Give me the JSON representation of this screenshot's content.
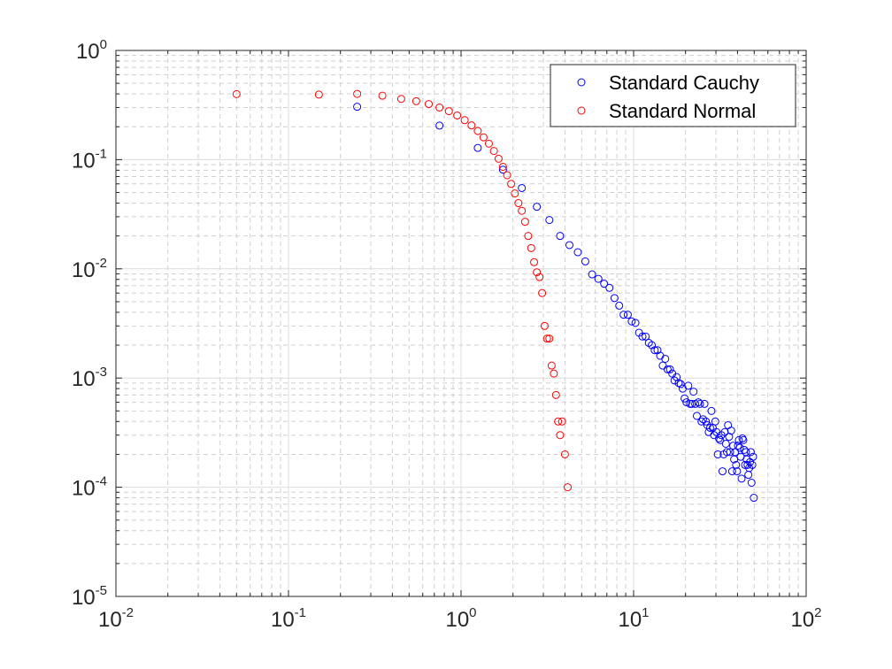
{
  "chart_data": {
    "type": "scatter",
    "xscale": "log",
    "yscale": "log",
    "xlim": [
      0.01,
      100
    ],
    "ylim": [
      1e-05,
      1
    ],
    "grid": true,
    "minor_grid": true,
    "legend_position": "top-right",
    "x_ticks": [
      {
        "value": 0.01,
        "base": "10",
        "exp": "-2"
      },
      {
        "value": 0.1,
        "base": "10",
        "exp": "-1"
      },
      {
        "value": 1,
        "base": "10",
        "exp": "0"
      },
      {
        "value": 10,
        "base": "10",
        "exp": "1"
      },
      {
        "value": 100,
        "base": "10",
        "exp": "2"
      }
    ],
    "y_ticks": [
      {
        "value": 1e-05,
        "base": "10",
        "exp": "-5"
      },
      {
        "value": 0.0001,
        "base": "10",
        "exp": "-4"
      },
      {
        "value": 0.001,
        "base": "10",
        "exp": "-3"
      },
      {
        "value": 0.01,
        "base": "10",
        "exp": "-2"
      },
      {
        "value": 0.1,
        "base": "10",
        "exp": "-1"
      },
      {
        "value": 1,
        "base": "10",
        "exp": "0"
      }
    ],
    "series": [
      {
        "name": "Standard Cauchy",
        "color": "#0000ff",
        "marker": "circle-open",
        "points": [
          [
            0.25,
            0.305
          ],
          [
            0.75,
            0.205
          ],
          [
            1.25,
            0.128
          ],
          [
            1.75,
            0.081
          ],
          [
            2.25,
            0.055
          ],
          [
            2.75,
            0.037
          ],
          [
            3.25,
            0.028
          ],
          [
            3.75,
            0.02
          ],
          [
            4.25,
            0.0165
          ],
          [
            4.75,
            0.0142
          ],
          [
            5.25,
            0.0117
          ],
          [
            5.75,
            0.0089
          ],
          [
            6.25,
            0.0081
          ],
          [
            6.75,
            0.0073
          ],
          [
            7.25,
            0.0067
          ],
          [
            7.75,
            0.0054
          ],
          [
            8.25,
            0.0046
          ],
          [
            8.75,
            0.0038
          ],
          [
            9.25,
            0.0038
          ],
          [
            9.75,
            0.0033
          ],
          [
            10.25,
            0.0032
          ],
          [
            10.75,
            0.0026
          ],
          [
            11.25,
            0.0024
          ],
          [
            11.75,
            0.0024
          ],
          [
            12.25,
            0.0021
          ],
          [
            12.75,
            0.002
          ],
          [
            13.25,
            0.0018
          ],
          [
            13.75,
            0.0018
          ],
          [
            14.25,
            0.0016
          ],
          [
            14.75,
            0.0013
          ],
          [
            15.25,
            0.0015
          ],
          [
            15.75,
            0.0012
          ],
          [
            16.25,
            0.0012
          ],
          [
            16.75,
            0.0011
          ],
          [
            17.25,
            0.00095
          ],
          [
            17.75,
            0.00102
          ],
          [
            18.25,
            0.0009
          ],
          [
            18.75,
            0.00088
          ],
          [
            19.25,
            0.0008
          ],
          [
            19.75,
            0.00065
          ],
          [
            20.25,
            0.0006
          ],
          [
            20.75,
            0.00085
          ],
          [
            21.25,
            0.00058
          ],
          [
            21.75,
            0.00058
          ],
          [
            22.25,
            0.00075
          ],
          [
            22.75,
            0.00058
          ],
          [
            23.25,
            0.00045
          ],
          [
            23.75,
            0.0006
          ],
          [
            24.25,
            0.00058
          ],
          [
            24.75,
            0.0004
          ],
          [
            25.25,
            0.00042
          ],
          [
            25.75,
            0.00058
          ],
          [
            26.25,
            0.0004
          ],
          [
            26.75,
            0.00037
          ],
          [
            27.25,
            0.00032
          ],
          [
            27.75,
            0.00035
          ],
          [
            28.25,
            0.0005
          ],
          [
            28.75,
            0.00035
          ],
          [
            29.25,
            0.0003
          ],
          [
            29.75,
            0.0004
          ],
          [
            30.25,
            0.00032
          ],
          [
            30.75,
            0.0002
          ],
          [
            31.25,
            0.00028
          ],
          [
            31.75,
            0.00027
          ],
          [
            32.25,
            0.0003
          ],
          [
            32.75,
            0.00014
          ],
          [
            33.25,
            0.0002
          ],
          [
            33.75,
            0.00032
          ],
          [
            34.25,
            0.00025
          ],
          [
            34.75,
            0.00021
          ],
          [
            35.25,
            0.00037
          ],
          [
            35.75,
            0.00029
          ],
          [
            36.25,
            0.00021
          ],
          [
            36.75,
            0.00033
          ],
          [
            37.25,
            0.00014
          ],
          [
            37.75,
            0.00024
          ],
          [
            38.25,
            0.00018
          ],
          [
            38.75,
            0.00021
          ],
          [
            39.25,
            0.00016
          ],
          [
            39.75,
            0.00014
          ],
          [
            40.25,
            0.00024
          ],
          [
            40.75,
            0.00027
          ],
          [
            41.25,
            0.00023
          ],
          [
            41.75,
            0.00019
          ],
          [
            42.25,
            0.00012
          ],
          [
            42.75,
            0.00028
          ],
          [
            43.25,
            0.00027
          ],
          [
            43.75,
            0.00022
          ],
          [
            44.25,
            0.00016
          ],
          [
            44.75,
            0.00021
          ],
          [
            45.25,
            0.00018
          ],
          [
            45.75,
            0.00016
          ],
          [
            46.25,
            0.00013
          ],
          [
            46.75,
            0.00015
          ],
          [
            47.25,
            0.00017
          ],
          [
            47.75,
            0.00021
          ],
          [
            48.25,
            0.00011
          ],
          [
            48.75,
            0.00016
          ],
          [
            49.25,
            0.00019
          ],
          [
            49.75,
            8e-05
          ]
        ]
      },
      {
        "name": "Standard Normal",
        "color": "#ff0000",
        "marker": "circle-open",
        "points": [
          [
            0.05,
            0.398
          ],
          [
            0.15,
            0.394
          ],
          [
            0.25,
            0.4
          ],
          [
            0.35,
            0.385
          ],
          [
            0.45,
            0.36
          ],
          [
            0.55,
            0.343
          ],
          [
            0.65,
            0.323
          ],
          [
            0.75,
            0.3
          ],
          [
            0.85,
            0.278
          ],
          [
            0.95,
            0.254
          ],
          [
            1.05,
            0.23
          ],
          [
            1.15,
            0.206
          ],
          [
            1.25,
            0.183
          ],
          [
            1.35,
            0.16
          ],
          [
            1.45,
            0.14
          ],
          [
            1.55,
            0.12
          ],
          [
            1.65,
            0.102
          ],
          [
            1.75,
            0.086
          ],
          [
            1.85,
            0.072
          ],
          [
            1.95,
            0.06
          ],
          [
            2.05,
            0.049
          ],
          [
            2.15,
            0.04
          ],
          [
            2.25,
            0.034
          ],
          [
            2.35,
            0.027
          ],
          [
            2.45,
            0.02
          ],
          [
            2.55,
            0.0155
          ],
          [
            2.65,
            0.0115
          ],
          [
            2.75,
            0.0093
          ],
          [
            2.85,
            0.0084
          ],
          [
            2.95,
            0.006
          ],
          [
            3.05,
            0.003
          ],
          [
            3.15,
            0.0023
          ],
          [
            3.25,
            0.0023
          ],
          [
            3.35,
            0.0013
          ],
          [
            3.45,
            0.0011
          ],
          [
            3.55,
            0.0007
          ],
          [
            3.65,
            0.0004
          ],
          [
            3.75,
            0.0003
          ],
          [
            3.85,
            0.0004
          ],
          [
            4.0,
            0.0002
          ],
          [
            4.15,
            0.0001
          ]
        ]
      }
    ]
  }
}
